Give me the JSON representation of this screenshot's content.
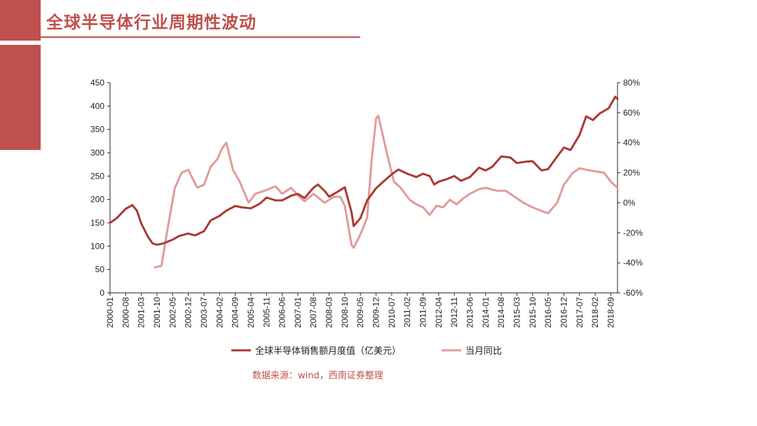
{
  "page": {
    "title": "全球半导体行业周期性波动",
    "source": "数据来源：wind，西南证券整理"
  },
  "colors": {
    "accent": "#c0504d",
    "sales": "#a93a34",
    "yoy": "#e39a9a"
  },
  "chart_data": {
    "type": "line",
    "left_axis": {
      "ylim": [
        0,
        450
      ],
      "ticks": [
        "0",
        "50",
        "100",
        "150",
        "200",
        "250",
        "300",
        "350",
        "400",
        "450"
      ]
    },
    "right_axis": {
      "ylim": [
        -60,
        80
      ],
      "ticks": [
        "-60%",
        "-40%",
        "-20%",
        "0%",
        "20%",
        "40%",
        "60%",
        "80%"
      ]
    },
    "x_ticks": [
      "2000-01",
      "2000-08",
      "2001-03",
      "2001-10",
      "2002-05",
      "2002-12",
      "2003-07",
      "2004-02",
      "2004-09",
      "2005-04",
      "2005-11",
      "2006-06",
      "2007-01",
      "2007-08",
      "2008-03",
      "2008-10",
      "2009-05",
      "2009-12",
      "2010-07",
      "2011-02",
      "2011-09",
      "2012-04",
      "2012-11",
      "2013-06",
      "2014-01",
      "2014-08",
      "2015-03",
      "2015-10",
      "2016-05",
      "2016-12",
      "2017-07",
      "2018-02",
      "2018-09"
    ],
    "x_range": [
      "2000-01",
      "2018-12"
    ],
    "series": [
      {
        "name": "全球半导体销售额月度值（亿美元）",
        "axis": "left",
        "points": [
          [
            "2000-01",
            150
          ],
          [
            "2000-04",
            160
          ],
          [
            "2000-08",
            180
          ],
          [
            "2000-11",
            188
          ],
          [
            "2001-01",
            176
          ],
          [
            "2001-03",
            148
          ],
          [
            "2001-06",
            120
          ],
          [
            "2001-08",
            106
          ],
          [
            "2001-10",
            103
          ],
          [
            "2002-01",
            106
          ],
          [
            "2002-05",
            114
          ],
          [
            "2002-08",
            122
          ],
          [
            "2002-12",
            127
          ],
          [
            "2003-03",
            123
          ],
          [
            "2003-07",
            132
          ],
          [
            "2003-10",
            155
          ],
          [
            "2004-02",
            165
          ],
          [
            "2004-05",
            176
          ],
          [
            "2004-09",
            186
          ],
          [
            "2004-12",
            183
          ],
          [
            "2005-04",
            181
          ],
          [
            "2005-08",
            191
          ],
          [
            "2005-11",
            204
          ],
          [
            "2006-03",
            198
          ],
          [
            "2006-06",
            198
          ],
          [
            "2006-10",
            208
          ],
          [
            "2007-01",
            212
          ],
          [
            "2007-04",
            203
          ],
          [
            "2007-08",
            225
          ],
          [
            "2007-10",
            232
          ],
          [
            "2008-01",
            218
          ],
          [
            "2008-03",
            206
          ],
          [
            "2008-07",
            217
          ],
          [
            "2008-10",
            226
          ],
          [
            "2009-01",
            173
          ],
          [
            "2009-02",
            143
          ],
          [
            "2009-05",
            160
          ],
          [
            "2009-08",
            198
          ],
          [
            "2009-12",
            224
          ],
          [
            "2010-03",
            237
          ],
          [
            "2010-07",
            254
          ],
          [
            "2010-10",
            264
          ],
          [
            "2011-02",
            255
          ],
          [
            "2011-06",
            248
          ],
          [
            "2011-09",
            255
          ],
          [
            "2011-12",
            250
          ],
          [
            "2012-02",
            232
          ],
          [
            "2012-04",
            238
          ],
          [
            "2012-08",
            244
          ],
          [
            "2012-11",
            250
          ],
          [
            "2013-02",
            240
          ],
          [
            "2013-06",
            248
          ],
          [
            "2013-10",
            268
          ],
          [
            "2014-01",
            262
          ],
          [
            "2014-04",
            270
          ],
          [
            "2014-08",
            292
          ],
          [
            "2014-12",
            290
          ],
          [
            "2015-03",
            278
          ],
          [
            "2015-07",
            281
          ],
          [
            "2015-10",
            282
          ],
          [
            "2016-02",
            262
          ],
          [
            "2016-05",
            265
          ],
          [
            "2016-09",
            292
          ],
          [
            "2016-12",
            311
          ],
          [
            "2017-03",
            306
          ],
          [
            "2017-07",
            338
          ],
          [
            "2017-10",
            378
          ],
          [
            "2018-01",
            370
          ],
          [
            "2018-04",
            384
          ],
          [
            "2018-08",
            395
          ],
          [
            "2018-11",
            420
          ],
          [
            "2018-12",
            415
          ]
        ]
      },
      {
        "name": "当月同比",
        "axis": "right",
        "points": [
          [
            "2001-09",
            -43
          ],
          [
            "2001-12",
            -42
          ],
          [
            "2002-03",
            -15
          ],
          [
            "2002-06",
            10
          ],
          [
            "2002-09",
            20
          ],
          [
            "2002-12",
            22
          ],
          [
            "2003-04",
            10
          ],
          [
            "2003-07",
            12
          ],
          [
            "2003-10",
            24
          ],
          [
            "2004-01",
            29
          ],
          [
            "2004-03",
            36
          ],
          [
            "2004-05",
            40
          ],
          [
            "2004-08",
            22
          ],
          [
            "2004-11",
            14
          ],
          [
            "2005-03",
            0
          ],
          [
            "2005-06",
            6
          ],
          [
            "2005-10",
            8
          ],
          [
            "2006-03",
            11
          ],
          [
            "2006-06",
            6
          ],
          [
            "2006-10",
            10
          ],
          [
            "2007-01",
            5
          ],
          [
            "2007-04",
            1
          ],
          [
            "2007-08",
            6
          ],
          [
            "2008-01",
            0
          ],
          [
            "2008-05",
            4
          ],
          [
            "2008-08",
            4
          ],
          [
            "2008-10",
            -2
          ],
          [
            "2009-01",
            -28
          ],
          [
            "2009-02",
            -30
          ],
          [
            "2009-05",
            -21
          ],
          [
            "2009-08",
            -10
          ],
          [
            "2009-10",
            28
          ],
          [
            "2009-12",
            56
          ],
          [
            "2010-01",
            58
          ],
          [
            "2010-03",
            45
          ],
          [
            "2010-05",
            32
          ],
          [
            "2010-08",
            14
          ],
          [
            "2010-11",
            10
          ],
          [
            "2011-03",
            2
          ],
          [
            "2011-06",
            -1
          ],
          [
            "2011-09",
            -3
          ],
          [
            "2011-12",
            -8
          ],
          [
            "2012-03",
            -2
          ],
          [
            "2012-06",
            -3
          ],
          [
            "2012-09",
            2
          ],
          [
            "2012-12",
            -1
          ],
          [
            "2013-03",
            3
          ],
          [
            "2013-06",
            6
          ],
          [
            "2013-10",
            9
          ],
          [
            "2014-01",
            10
          ],
          [
            "2014-06",
            8
          ],
          [
            "2014-10",
            8
          ],
          [
            "2015-01",
            5
          ],
          [
            "2015-06",
            0
          ],
          [
            "2015-10",
            -3
          ],
          [
            "2016-03",
            -6
          ],
          [
            "2016-05",
            -7
          ],
          [
            "2016-09",
            0
          ],
          [
            "2016-12",
            12
          ],
          [
            "2017-04",
            20
          ],
          [
            "2017-07",
            23
          ],
          [
            "2017-10",
            22
          ],
          [
            "2018-02",
            21
          ],
          [
            "2018-06",
            20
          ],
          [
            "2018-09",
            14
          ],
          [
            "2018-12",
            10
          ]
        ]
      }
    ],
    "legend": {
      "placement": "bottom"
    }
  }
}
